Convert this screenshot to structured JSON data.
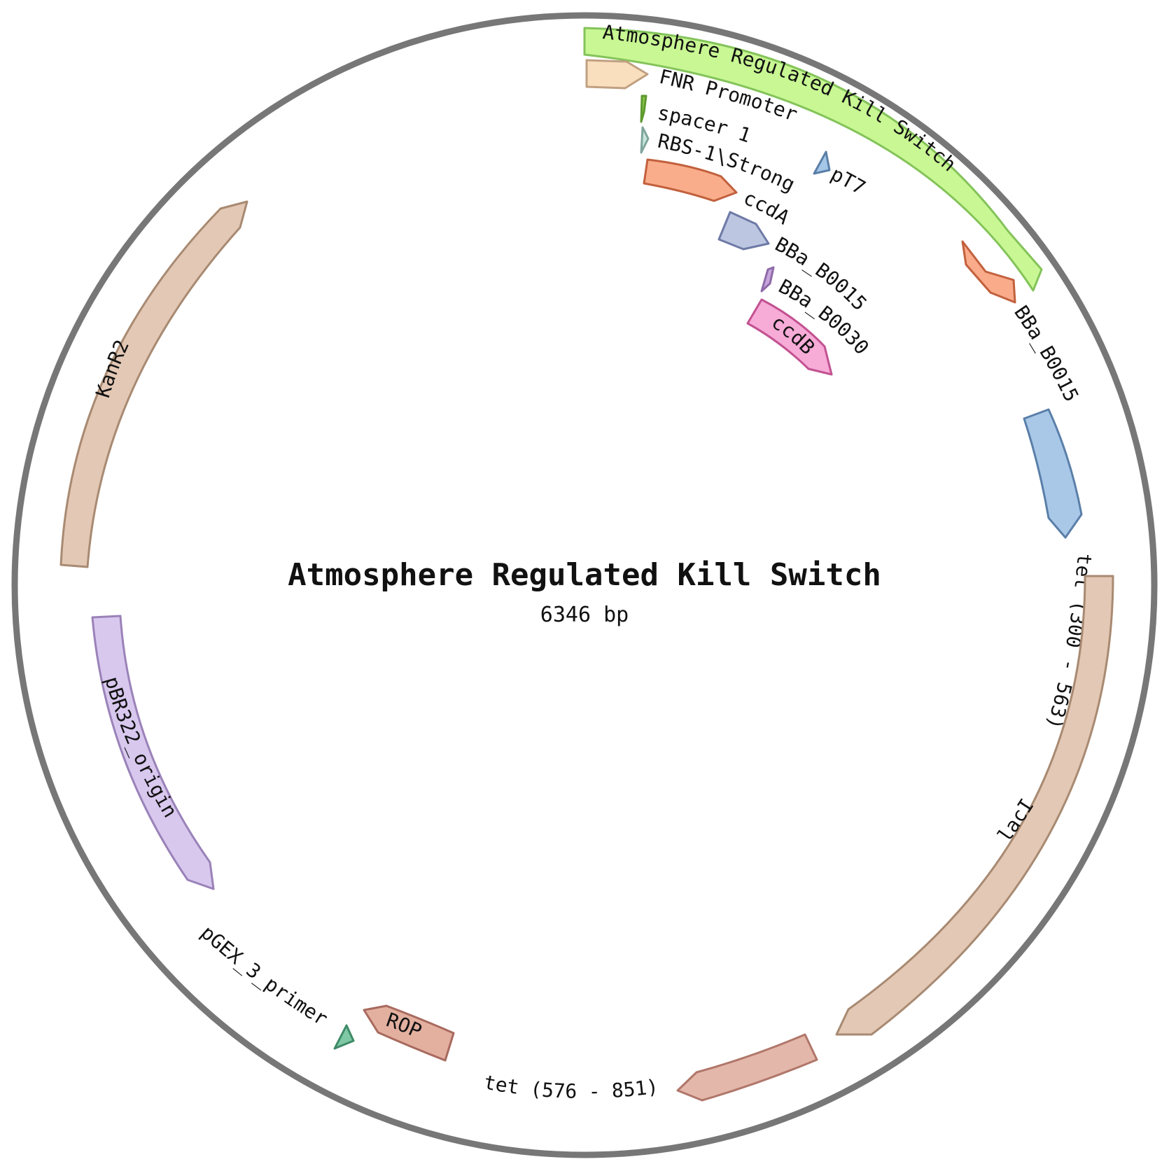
{
  "plasmid": {
    "name": "Atmosphere Regulated Kill Switch",
    "length_label": "6346 bp"
  },
  "features": [
    {
      "id": "kill-switch",
      "label": "Atmosphere Regulated Kill Switch",
      "fill": "#c8f793",
      "stroke": "#84c35a",
      "label_pos": "inside"
    },
    {
      "id": "fnr-promoter",
      "label": "FNR Promoter",
      "fill": "#f9dfbe",
      "stroke": "#c0a081",
      "label_pos": "outside"
    },
    {
      "id": "spacer-1",
      "label": "spacer 1",
      "fill": "#8bc34a",
      "stroke": "#5e9a2f",
      "label_pos": "outside"
    },
    {
      "id": "rbs-1-strong",
      "label": "RBS-1\\Strong",
      "fill": "#c8e6dc",
      "stroke": "#7fa59b",
      "label_pos": "outside"
    },
    {
      "id": "pt7",
      "label": "pT7",
      "fill": "#a6c8e8",
      "stroke": "#5a7fa8",
      "label_pos": "outside"
    },
    {
      "id": "ccda",
      "label": "ccdA",
      "fill": "#f9ad8a",
      "stroke": "#c2603d",
      "label_pos": "outside"
    },
    {
      "id": "bba-b0015-a",
      "label": "BBa_B0015",
      "fill": "#bcc6e1",
      "stroke": "#6d7aa6",
      "label_pos": "outside"
    },
    {
      "id": "bba-b0030",
      "label": "BBa_B0030",
      "fill": "#c6a6dc",
      "stroke": "#8e6aa8",
      "label_pos": "outside"
    },
    {
      "id": "ccdb",
      "label": "ccdB",
      "fill": "#f7abd7",
      "stroke": "#c25291",
      "label_pos": "inside"
    },
    {
      "id": "bba-b0015-b",
      "label": "BBa_B0015",
      "fill": "#f9ab8a",
      "stroke": "#c2603d",
      "label_pos": "outside"
    },
    {
      "id": "tet-300-563",
      "label": "tet (300 - 563)",
      "fill": "#a9c8e8",
      "stroke": "#5a7fa8",
      "label_pos": "outside"
    },
    {
      "id": "laci",
      "label": "lacI",
      "fill": "#e3c8b5",
      "stroke": "#a88a72",
      "label_pos": "inside"
    },
    {
      "id": "tet-576-851",
      "label": "tet (576 - 851)",
      "fill": "#e3b7aa",
      "stroke": "#b0776a",
      "label_pos": "outside"
    },
    {
      "id": "rop",
      "label": "ROP",
      "fill": "#e3b0a0",
      "stroke": "#a86a5e",
      "label_pos": "inside"
    },
    {
      "id": "pgex-3-primer",
      "label": "pGEX_3_primer",
      "fill": "#7fc8a6",
      "stroke": "#3f8a68",
      "label_pos": "outside"
    },
    {
      "id": "pbr322-origin",
      "label": "pBR322_origin",
      "fill": "#d8c8ee",
      "stroke": "#9a82b8",
      "label_pos": "inside"
    },
    {
      "id": "kanr2",
      "label": "KanR2",
      "fill": "#e3c8b5",
      "stroke": "#a88a72",
      "label_pos": "inside"
    }
  ]
}
